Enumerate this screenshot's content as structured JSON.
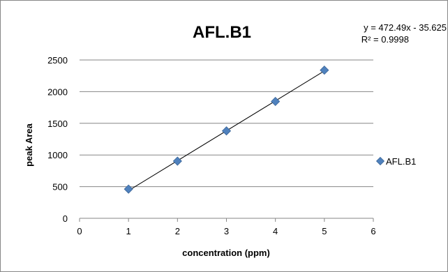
{
  "chart_data": {
    "type": "scatter",
    "title": "AFL.B1",
    "xlabel": "concentration (ppm)",
    "ylabel": "peak Area",
    "xlim": [
      0,
      6
    ],
    "ylim": [
      0,
      2500
    ],
    "x_ticks": [
      "0",
      "1",
      "2",
      "3",
      "4",
      "5",
      "6"
    ],
    "y_ticks": [
      "0",
      "500",
      "1000",
      "1500",
      "2000",
      "2500"
    ],
    "grid": "horizontal",
    "legend_position": "right",
    "series": [
      {
        "name": "AFL.B1",
        "color": "#4f81bd",
        "marker": "diamond",
        "x": [
          1,
          2,
          3,
          4,
          5
        ],
        "y": [
          461,
          903,
          1380,
          1845,
          2339
        ]
      }
    ],
    "trendline": {
      "type": "linear",
      "slope": 472.49,
      "intercept": -35.625,
      "x_range": [
        1,
        5
      ],
      "equation_text": "y = 472.49x - 35.625",
      "r2_text": "R² = 0.9998"
    }
  }
}
